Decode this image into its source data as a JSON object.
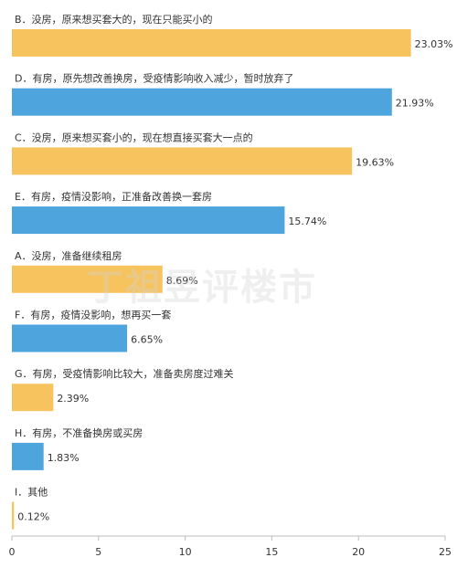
{
  "chart_data": {
    "type": "bar",
    "orientation": "horizontal",
    "categories": [
      "B．没房，原来想买套大的，现在只能买小的",
      "D．有房，原先想改善换房，受疫情影响收入减少，暂时放弃了",
      "C．没房，原来想买套小的，现在想直接买套大一点的",
      "E．有房，疫情没影响，正准备改善换一套房",
      "A．没房，准备继续租房",
      "F．有房，疫情没影响，想再买一套",
      "G．有房，受疫情影响比较大，准备卖房度过难关",
      "H．有房，不准备换房或买房",
      "I．其他"
    ],
    "values": [
      23.03,
      21.93,
      19.63,
      15.74,
      8.69,
      6.65,
      2.39,
      1.83,
      0.12
    ],
    "value_labels": [
      "23.03%",
      "21.93%",
      "19.63%",
      "15.74%",
      "8.69%",
      "6.65%",
      "2.39%",
      "1.83%",
      "0.12%"
    ],
    "bar_colors": [
      "#F7C35F",
      "#4EA5DE",
      "#F7C35F",
      "#4EA5DE",
      "#F7C35F",
      "#4EA5DE",
      "#F7C35F",
      "#4EA5DE",
      "#F7C35F"
    ],
    "xlim": [
      0,
      25
    ],
    "xticks": [
      0,
      5,
      10,
      15,
      20,
      25
    ],
    "grid": false,
    "title": "",
    "xlabel": "",
    "ylabel": ""
  },
  "watermark": "丁祖昱评楼市"
}
